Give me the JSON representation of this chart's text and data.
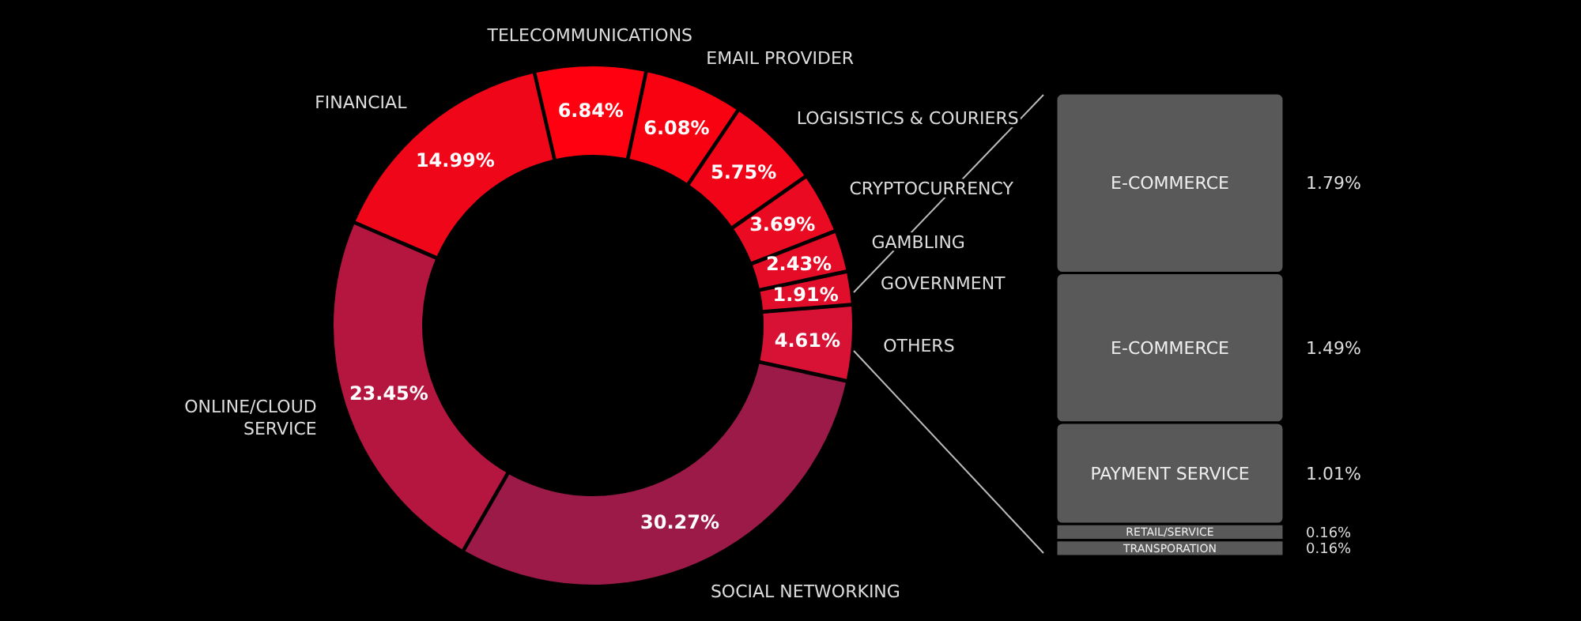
{
  "chart_data": [
    {
      "type": "donut",
      "categories": [
        "TELECOMMUNICATIONS",
        "EMAIL PROVIDER",
        "LOGISISTICS & COURIERS",
        "CRYPTOCURRENCY",
        "GAMBLING",
        "GOVERNMENT",
        "OTHERS",
        "SOCIAL NETWORKING",
        "ONLINE/CLOUD SERVICE",
        "FINANCIAL"
      ],
      "values": [
        6.84,
        6.08,
        5.75,
        3.69,
        2.43,
        1.91,
        4.61,
        30.27,
        23.45,
        14.99
      ],
      "value_labels": [
        "6.84%",
        "6.08%",
        "5.75%",
        "3.69%",
        "2.43%",
        "1.91%",
        "4.61%",
        "30.27%",
        "23.45%",
        "14.99%"
      ],
      "colors": [
        "#fe0010",
        "#f80212",
        "#f20418",
        "#ea0a22",
        "#e50c27",
        "#e00e2b",
        "#d81234",
        "#9c1a48",
        "#b5163f",
        "#f00619"
      ]
    },
    {
      "type": "other",
      "categories": [
        "E-COMMERCE",
        "E-COMMERCE",
        "PAYMENT SERVICE",
        "RETAIL/SERVICE",
        "TRANSPORATION"
      ],
      "values": [
        1.79,
        1.49,
        1.01,
        0.16,
        0.16
      ],
      "value_labels": [
        "1.79%",
        "1.49%",
        "1.01%",
        "0.16%",
        "0.16%"
      ],
      "color": "#595959"
    }
  ]
}
